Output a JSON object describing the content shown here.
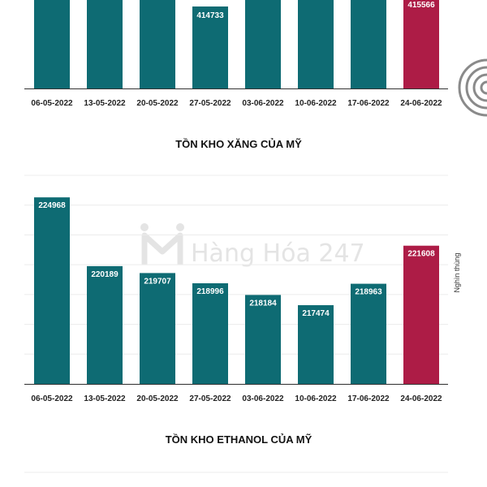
{
  "watermark": {
    "text": "Hàng Hóa 247"
  },
  "colors": {
    "bar": "#0e6b73",
    "highlight": "#ad1c46",
    "grid": "#ececec",
    "axis": "#333333"
  },
  "charts": [
    {
      "title": ""
    },
    {
      "title": "TỒN KHO XĂNG CỦA MỸ",
      "unit_label": "Nghìn thùng"
    },
    {
      "title": "TỒN KHO ETHANOL CỦA MỸ"
    }
  ],
  "chart_data": [
    {
      "type": "bar",
      "title": "",
      "categories": [
        "06-05-2022",
        "13-05-2022",
        "20-05-2022",
        "27-05-2022",
        "03-06-2022",
        "10-06-2022",
        "17-06-2022",
        "24-06-2022"
      ],
      "values": [
        null,
        null,
        null,
        414733,
        null,
        null,
        null,
        415566
      ],
      "labels": [
        "",
        "",
        "",
        "414733",
        "",
        "",
        "",
        "415566"
      ],
      "highlight_index": 7
    },
    {
      "type": "bar",
      "title": "TỒN KHO XĂNG CỦA MỸ",
      "ylabel": "Nghìn thùng",
      "categories": [
        "06-05-2022",
        "13-05-2022",
        "20-05-2022",
        "27-05-2022",
        "03-06-2022",
        "10-06-2022",
        "17-06-2022",
        "24-06-2022"
      ],
      "values": [
        224968,
        220189,
        219707,
        218996,
        218184,
        217474,
        218963,
        221608
      ],
      "ylim": [
        212000,
        226500
      ],
      "grid": true,
      "highlight_index": 7
    }
  ]
}
